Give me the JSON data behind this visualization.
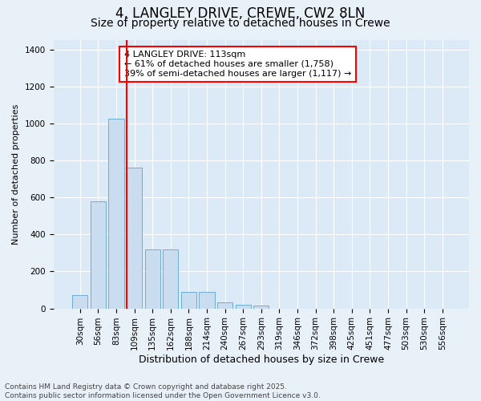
{
  "title1": "4, LANGLEY DRIVE, CREWE, CW2 8LN",
  "title2": "Size of property relative to detached houses in Crewe",
  "xlabel": "Distribution of detached houses by size in Crewe",
  "ylabel": "Number of detached properties",
  "categories": [
    "30sqm",
    "56sqm",
    "83sqm",
    "109sqm",
    "135sqm",
    "162sqm",
    "188sqm",
    "214sqm",
    "240sqm",
    "267sqm",
    "293sqm",
    "319sqm",
    "346sqm",
    "372sqm",
    "398sqm",
    "425sqm",
    "451sqm",
    "477sqm",
    "503sqm",
    "530sqm",
    "556sqm"
  ],
  "values": [
    70,
    580,
    1025,
    760,
    320,
    320,
    90,
    90,
    35,
    20,
    15,
    0,
    0,
    0,
    0,
    0,
    0,
    0,
    0,
    0,
    0
  ],
  "bar_color": "#c9dcf0",
  "bar_edge_color": "#6baed6",
  "vline_color": "red",
  "vline_index": 3,
  "annotation_text": "4 LANGLEY DRIVE: 113sqm\n← 61% of detached houses are smaller (1,758)\n39% of semi-detached houses are larger (1,117) →",
  "annotation_box_facecolor": "white",
  "annotation_box_edgecolor": "red",
  "background_color": "#e8f0f8",
  "plot_bg_color": "#dce9f7",
  "ylim": [
    0,
    1450
  ],
  "yticks": [
    0,
    200,
    400,
    600,
    800,
    1000,
    1200,
    1400
  ],
  "footer": "Contains HM Land Registry data © Crown copyright and database right 2025.\nContains public sector information licensed under the Open Government Licence v3.0.",
  "title1_fontsize": 12,
  "title2_fontsize": 10,
  "xlabel_fontsize": 9,
  "ylabel_fontsize": 8,
  "tick_fontsize": 7.5,
  "annotation_fontsize": 8,
  "footer_fontsize": 6.5
}
